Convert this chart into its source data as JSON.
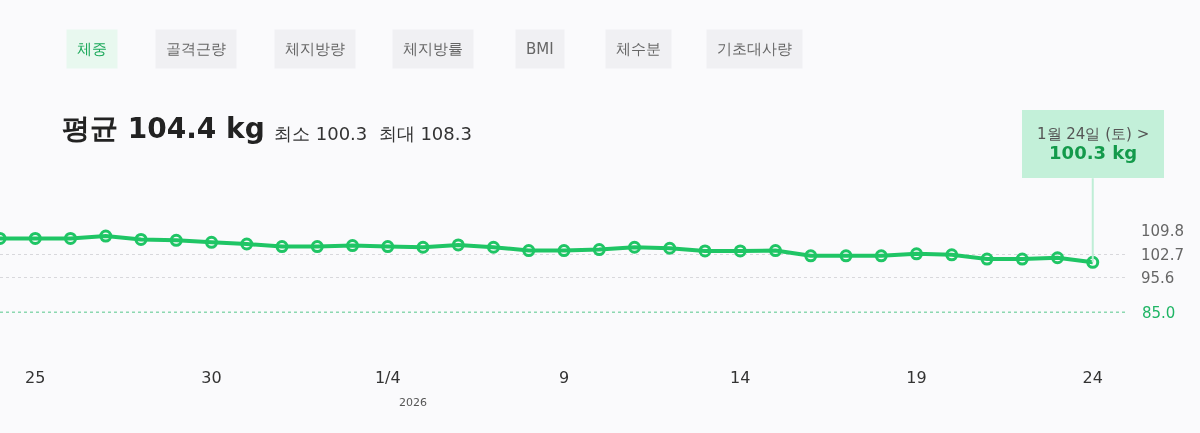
{
  "chart_data": {
    "type": "line",
    "title": "평균 104.4 kg",
    "subtitle": "최소 100.3  최대 108.3",
    "x": [
      "2025-12-24",
      "2025-12-25",
      "2025-12-26",
      "2025-12-27",
      "2025-12-28",
      "2025-12-29",
      "2025-12-30",
      "2025-12-31",
      "2026-01-01",
      "2026-01-02",
      "2026-01-03",
      "2026-01-04",
      "2026-01-05",
      "2026-01-06",
      "2026-01-07",
      "2026-01-08",
      "2026-01-09",
      "2026-01-10",
      "2026-01-11",
      "2026-01-12",
      "2026-01-13",
      "2026-01-14",
      "2026-01-15",
      "2026-01-16",
      "2026-01-17",
      "2026-01-18",
      "2026-01-19",
      "2026-01-20",
      "2026-01-21",
      "2026-01-22",
      "2026-01-23",
      "2026-01-24"
    ],
    "series": [
      {
        "color": "#1fc565",
        "values": [
          107.6,
          107.6,
          107.6,
          108.3,
          107.3,
          107.0,
          106.4,
          105.9,
          105.1,
          105.1,
          105.4,
          105.1,
          104.9,
          105.6,
          104.9,
          103.9,
          103.9,
          104.2,
          104.9,
          104.6,
          103.8,
          103.8,
          103.9,
          102.3,
          102.3,
          102.3,
          102.9,
          102.6,
          101.3,
          101.3,
          101.7,
          100.3
        ]
      }
    ],
    "xlim": [
      "2025-12-24",
      "2026-01-25"
    ],
    "xticks": [
      {
        "value": "2025-12-25",
        "label": "25"
      },
      {
        "value": "2025-12-30",
        "label": "30"
      },
      {
        "value": "2026-01-04",
        "label": "1/4"
      },
      {
        "value": "2026-01-09",
        "label": "9"
      },
      {
        "value": "2026-01-14",
        "label": "14"
      },
      {
        "value": "2026-01-19",
        "label": "19"
      },
      {
        "value": "2026-01-24",
        "label": "24"
      }
    ],
    "ylim": [
      85.0,
      109.8
    ],
    "yticks": [
      109.8,
      102.7,
      95.6
    ],
    "ref_lines": [
      {
        "axis": "y",
        "value": 85.0,
        "label": "85.0",
        "color": "#1fb565",
        "line_style": "dotted"
      }
    ],
    "grid": "y",
    "marker": "circle",
    "line_style": "solid",
    "annotations": [
      "체중",
      "골격근량",
      "체지방량",
      "체지방률",
      "BMI",
      "체수분",
      "기초대사량",
      "2026",
      {
        "text": "1월 24일 (토) >\n100.3 kg",
        "x": "2026-01-24",
        "y": 100.3
      }
    ]
  }
}
